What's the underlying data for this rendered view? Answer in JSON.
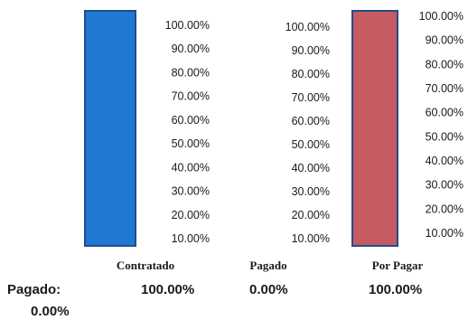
{
  "chart_data": {
    "type": "bar",
    "categories": [
      "Contratado",
      "Pagado",
      "Por Pagar"
    ],
    "values": [
      100,
      0,
      100
    ],
    "colors": [
      "#1f78d1",
      "#ffffff",
      "#c85a62"
    ],
    "border_color": "#1f4e8c",
    "ylim": [
      0,
      100
    ],
    "tick_values": [
      100,
      90,
      80,
      70,
      60,
      50,
      40,
      30,
      20,
      10
    ],
    "tick_labels": [
      "100.00%",
      "90.00%",
      "80.00%",
      "70.00%",
      "60.00%",
      "50.00%",
      "40.00%",
      "30.00%",
      "20.00%",
      "10.00%"
    ],
    "grid": false
  },
  "summary": {
    "pagado_label": "Pagado:",
    "pagado_value": "0.00%",
    "values": [
      "100.00%",
      "0.00%",
      "100.00%"
    ]
  }
}
